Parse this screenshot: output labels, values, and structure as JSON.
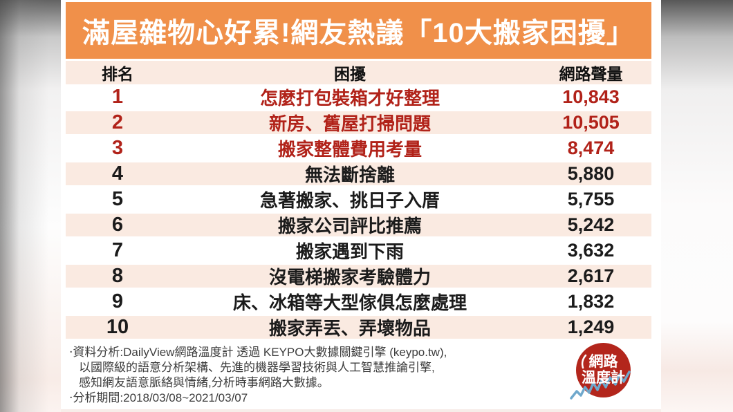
{
  "page": {
    "title": "滿屋雜物心好累!網友熱議「10大搬家困擾」"
  },
  "table": {
    "headers": {
      "rank": "排名",
      "topic": "困擾",
      "volume": "網路聲量"
    },
    "rows": [
      {
        "rank": "1",
        "topic": "怎麼打包裝箱才好整理",
        "volume": "10,843",
        "highlight": true
      },
      {
        "rank": "2",
        "topic": "新房、舊屋打掃問題",
        "volume": "10,505",
        "highlight": true
      },
      {
        "rank": "3",
        "topic": "搬家整體費用考量",
        "volume": "8,474",
        "highlight": true
      },
      {
        "rank": "4",
        "topic": "無法斷捨離",
        "volume": "5,880",
        "highlight": false
      },
      {
        "rank": "5",
        "topic": "急著搬家、挑日子入厝",
        "volume": "5,755",
        "highlight": false
      },
      {
        "rank": "6",
        "topic": "搬家公司評比推薦",
        "volume": "5,242",
        "highlight": false
      },
      {
        "rank": "7",
        "topic": "搬家遇到下雨",
        "volume": "3,632",
        "highlight": false
      },
      {
        "rank": "8",
        "topic": "沒電梯搬家考驗體力",
        "volume": "2,617",
        "highlight": false
      },
      {
        "rank": "9",
        "topic": "床、冰箱等大型傢俱怎麼處理",
        "volume": "1,832",
        "highlight": false
      },
      {
        "rank": "10",
        "topic": "搬家弄丟、弄壞物品",
        "volume": "1,249",
        "highlight": false
      }
    ]
  },
  "footer": {
    "lines": [
      "‧資料分析:DailyView網路溫度計 透過 KEYPO大數據關鍵引擎 (keypo.tw),",
      "以國際級的語意分析架構、先進的機器學習技術與人工智慧推論引擎,",
      "感知網友語意脈絡與情緒,分析時事網路大數據。",
      "‧分析期間:2018/03/08~2021/03/07"
    ]
  },
  "logo": {
    "name": "網路溫度計",
    "line1": "網路",
    "line2": "溫度計"
  },
  "colors": {
    "banner_orange": "#F0904A",
    "row_peach": "#FAEAE1",
    "highlight_red": "#B12219",
    "text_black": "#1b1b1b",
    "footer_grey": "#3c3c3c",
    "logo_red": "#B3261C",
    "logo_zigzag_blue": "#6FA8CC"
  },
  "chart_data": {
    "type": "table",
    "title": "滿屋雜物心好累!網友熱議「10大搬家困擾」",
    "columns": [
      "排名",
      "困擾",
      "網路聲量"
    ],
    "rows": [
      [
        1,
        "怎麼打包裝箱才好整理",
        10843
      ],
      [
        2,
        "新房、舊屋打掃問題",
        10505
      ],
      [
        3,
        "搬家整體費用考量",
        8474
      ],
      [
        4,
        "無法斷捨離",
        5880
      ],
      [
        5,
        "急著搬家、挑日子入厝",
        5755
      ],
      [
        6,
        "搬家公司評比推薦",
        5242
      ],
      [
        7,
        "搬家遇到下雨",
        3632
      ],
      [
        8,
        "沒電梯搬家考驗體力",
        2617
      ],
      [
        9,
        "床、冰箱等大型傢俱怎麼處理",
        1832
      ],
      [
        10,
        "搬家弄丟、弄壞物品",
        1249
      ]
    ],
    "highlighted_ranks": [
      1,
      2,
      3
    ],
    "source": "DailyView網路溫度計 透過 KEYPO大數據關鍵引擎 (keypo.tw)",
    "analysis_period": "2018/03/08~2021/03/07"
  }
}
